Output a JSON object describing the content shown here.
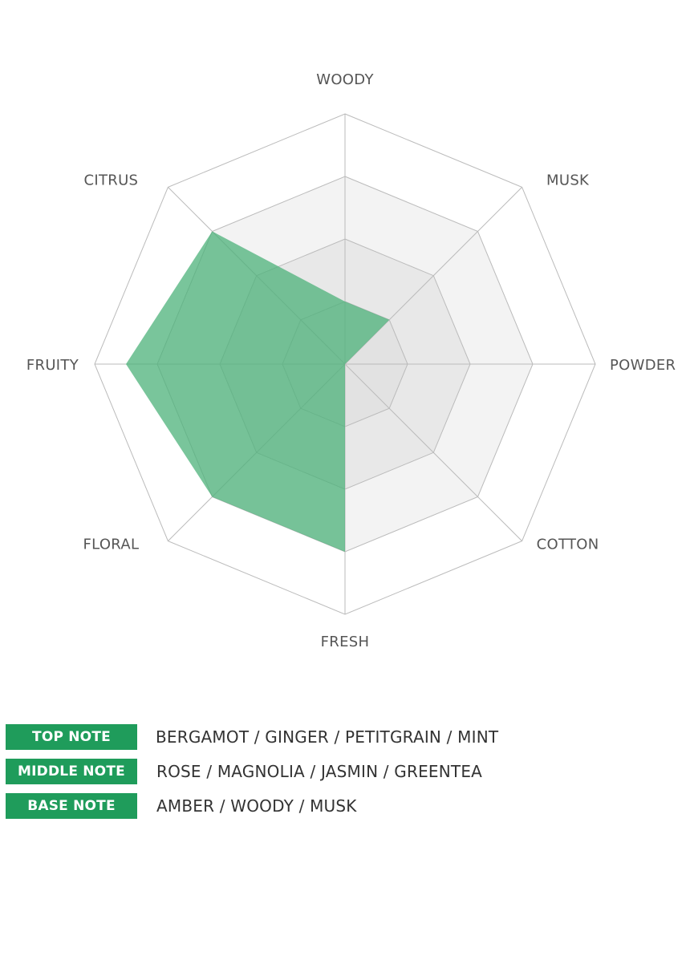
{
  "chart_data": {
    "type": "radar",
    "axes": [
      "WOODY",
      "MUSK",
      "POWDER",
      "COTTON",
      "FRESH",
      "FLORAL",
      "FRUITY",
      "CITRUS"
    ],
    "series": [
      {
        "values": [
          1,
          1,
          0,
          0,
          3,
          3,
          3.5,
          3
        ],
        "color": "#4cb27a"
      }
    ],
    "range": [
      0,
      4
    ],
    "levels": 4,
    "ring_fill": [
      "#e2e2e2",
      "#e8e8e8",
      "#f3f3f3",
      "#ffffff"
    ],
    "grid_color": "#bbbbbb"
  },
  "notes": [
    {
      "label": "TOP NOTE",
      "text": "BERGAMOT / GINGER / PETITGRAIN / MINT"
    },
    {
      "label": "MIDDLE NOTE",
      "text": "ROSE / MAGNOLIA / JASMIN / GREENTEA"
    },
    {
      "label": "BASE NOTE",
      "text": "AMBER / WOODY / MUSK"
    }
  ],
  "accent_color": "#1f9c5b"
}
